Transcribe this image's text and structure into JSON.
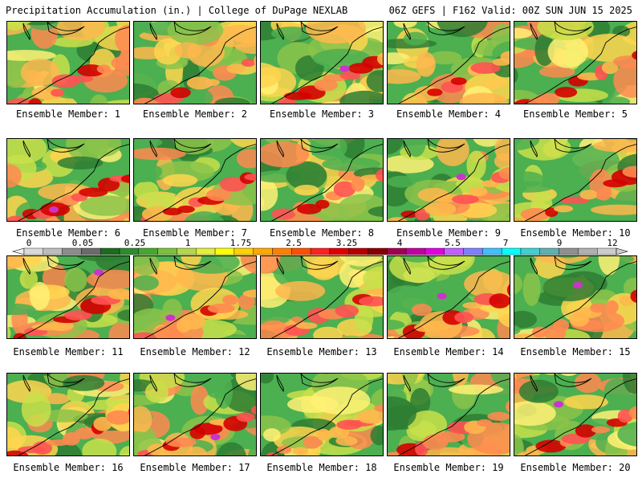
{
  "header": {
    "left": "Precipitation Accumulation (in.) | College of DuPage NEXLAB",
    "right": "06Z GEFS | F162 Valid: 00Z SUN JUN 15 2025"
  },
  "panels": [
    {
      "caption": "Ensemble Member: 1"
    },
    {
      "caption": "Ensemble Member: 2"
    },
    {
      "caption": "Ensemble Member: 3"
    },
    {
      "caption": "Ensemble Member: 4"
    },
    {
      "caption": "Ensemble Member: 5"
    },
    {
      "caption": "Ensemble Member: 6"
    },
    {
      "caption": "Ensemble Member: 7"
    },
    {
      "caption": "Ensemble Member: 8"
    },
    {
      "caption": "Ensemble Member: 9"
    },
    {
      "caption": "Ensemble Member: 10"
    },
    {
      "caption": "Ensemble Member: 11"
    },
    {
      "caption": "Ensemble Member: 12"
    },
    {
      "caption": "Ensemble Member: 13"
    },
    {
      "caption": "Ensemble Member: 14"
    },
    {
      "caption": "Ensemble Member: 15"
    },
    {
      "caption": "Ensemble Member: 16"
    },
    {
      "caption": "Ensemble Member: 17"
    },
    {
      "caption": "Ensemble Member: 18"
    },
    {
      "caption": "Ensemble Member: 19"
    },
    {
      "caption": "Ensemble Member: 20"
    }
  ],
  "colorbar": {
    "tick_labels": [
      "0",
      "0.05",
      "0.25",
      "1",
      "1.75",
      "2.5",
      "3.25",
      "4",
      "5.5",
      "7",
      "9",
      "12"
    ],
    "colors": [
      "#d9d9d9",
      "#bdbdbd",
      "#8c8c8c",
      "#6b6b6b",
      "#1e6b1e",
      "#2e8b2e",
      "#46a82e",
      "#7ac23a",
      "#b4d84a",
      "#e4ee3c",
      "#ffff00",
      "#ffd200",
      "#ffa800",
      "#ff8000",
      "#ff5000",
      "#ff2020",
      "#e00000",
      "#b40000",
      "#880000",
      "#a00050",
      "#c000a0",
      "#e000e0",
      "#c060ff",
      "#8080ff",
      "#40c0ff",
      "#00ffff",
      "#40d0d0",
      "#60b0b0",
      "#909090",
      "#b0b0b0",
      "#cccccc"
    ]
  },
  "fields": {
    "colors": [
      "#2e7d32",
      "#4caf50",
      "#8bc34a",
      "#c8e04a",
      "#fff176",
      "#ffd54f",
      "#ffb74d",
      "#ff8a50",
      "#ff5252",
      "#d50000",
      "#cc33cc"
    ]
  }
}
